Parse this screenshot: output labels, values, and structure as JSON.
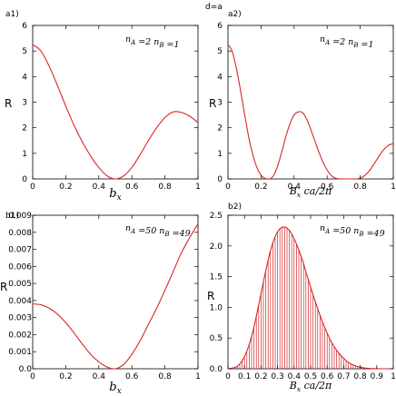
{
  "figure_title": "d=a",
  "colors": {
    "curve": "#d62728",
    "axis": "#000000"
  },
  "chart_data": [
    {
      "id": "a1",
      "panel_label": "a1)",
      "type": "line",
      "annotation": "n_A =2 n_B =1",
      "xlabel": "b_x",
      "ylabel": "R",
      "xlim": [
        0,
        1
      ],
      "ylim": [
        0,
        6
      ],
      "xticks": [
        0,
        0.2,
        0.4,
        0.6,
        0.8,
        1
      ],
      "xtick_labels": [
        "0",
        "0.2",
        "0.4",
        "0.6",
        "0.8",
        "1"
      ],
      "yticks": [
        0,
        1,
        2,
        3,
        4,
        5,
        6
      ],
      "ytick_labels": [
        "0",
        "1",
        "2",
        "3",
        "4",
        "5",
        "6"
      ],
      "grid": false,
      "series": [
        {
          "x": [
            0,
            0.05,
            0.1,
            0.15,
            0.2,
            0.25,
            0.3,
            0.35,
            0.4,
            0.45,
            0.5,
            0.55,
            0.6,
            0.65,
            0.7,
            0.75,
            0.8,
            0.85,
            0.9,
            0.95,
            1.0
          ],
          "y": [
            5.25,
            5.0,
            4.4,
            3.65,
            2.85,
            2.1,
            1.45,
            0.9,
            0.45,
            0.12,
            0.0,
            0.12,
            0.45,
            0.95,
            1.5,
            2.0,
            2.4,
            2.62,
            2.6,
            2.45,
            2.2
          ]
        }
      ]
    },
    {
      "id": "a2",
      "panel_label": "a2)",
      "type": "line",
      "annotation": "n_A =2 n_B =1",
      "xlabel": "B_x ca/2π",
      "ylabel": "R",
      "xlim": [
        0,
        1
      ],
      "ylim": [
        0,
        6
      ],
      "xticks": [
        0,
        0.2,
        0.4,
        0.6,
        0.8,
        1
      ],
      "xtick_labels": [
        "0",
        "0.2",
        "0.4",
        "0.6",
        "0.8",
        "1"
      ],
      "yticks": [
        0,
        1,
        2,
        3,
        4,
        5,
        6
      ],
      "ytick_labels": [
        "0",
        "1",
        "2",
        "3",
        "4",
        "5",
        "6"
      ],
      "grid": false,
      "series": [
        {
          "x": [
            0,
            0.025,
            0.05,
            0.075,
            0.1,
            0.125,
            0.15,
            0.175,
            0.2,
            0.225,
            0.25,
            0.275,
            0.3,
            0.325,
            0.35,
            0.375,
            0.4,
            0.425,
            0.45,
            0.475,
            0.5,
            0.525,
            0.55,
            0.575,
            0.6,
            0.625,
            0.65,
            0.675,
            0.7,
            0.725,
            0.75,
            0.775,
            0.8,
            0.825,
            0.85,
            0.875,
            0.9,
            0.925,
            0.95,
            0.975,
            1.0
          ],
          "y": [
            5.25,
            5.0,
            4.35,
            3.5,
            2.55,
            1.65,
            0.95,
            0.45,
            0.15,
            0.02,
            0.0,
            0.12,
            0.5,
            1.05,
            1.65,
            2.15,
            2.5,
            2.62,
            2.6,
            2.35,
            1.95,
            1.5,
            1.05,
            0.65,
            0.35,
            0.13,
            0.03,
            0.0,
            0.0,
            0.0,
            0.0,
            0.0,
            0.03,
            0.12,
            0.28,
            0.5,
            0.75,
            1.0,
            1.2,
            1.33,
            1.38
          ]
        }
      ]
    },
    {
      "id": "b1",
      "panel_label": "b1)",
      "type": "line",
      "annotation": "n_A =50 n_B =49",
      "xlabel": "b_x",
      "ylabel": "R",
      "xlim": [
        0,
        1
      ],
      "ylim": [
        0,
        0.009
      ],
      "xticks": [
        0,
        0.2,
        0.4,
        0.6,
        0.8,
        1
      ],
      "xtick_labels": [
        "0",
        "0.2",
        "0.4",
        "0.6",
        "0.8",
        "1"
      ],
      "yticks": [
        0,
        0.001,
        0.002,
        0.003,
        0.004,
        0.005,
        0.006,
        0.007,
        0.008,
        0.009
      ],
      "ytick_labels": [
        "0.0",
        "0.001",
        "0.002",
        "0.003",
        "0.004",
        "0.005",
        "0.006",
        "0.007",
        "0.008",
        "0.009"
      ],
      "grid": false,
      "series": [
        {
          "x": [
            0,
            0.05,
            0.1,
            0.15,
            0.2,
            0.25,
            0.3,
            0.35,
            0.4,
            0.45,
            0.5,
            0.55,
            0.6,
            0.65,
            0.7,
            0.75,
            0.8,
            0.85,
            0.9,
            0.95,
            1.0
          ],
          "y": [
            0.0038,
            0.00375,
            0.00355,
            0.0032,
            0.0027,
            0.0021,
            0.00145,
            0.00085,
            0.0004,
            0.0001,
            0.0,
            0.00025,
            0.00085,
            0.00165,
            0.0026,
            0.00355,
            0.0046,
            0.0057,
            0.0068,
            0.0077,
            0.0085
          ]
        }
      ]
    },
    {
      "id": "b2",
      "panel_label": "b2)",
      "type": "area",
      "annotation": "n_A =50 n_B =49",
      "xlabel": "B_x ca/2π",
      "ylabel": "R",
      "xlim": [
        0,
        1
      ],
      "ylim": [
        0,
        2.5
      ],
      "xticks": [
        0,
        0.1,
        0.2,
        0.3,
        0.4,
        0.5,
        0.6,
        0.7,
        0.8,
        0.9,
        1
      ],
      "xtick_labels": [
        "0",
        "0.1",
        "0.2",
        "0.3",
        "0.4",
        "0.5",
        "0.6",
        "0.7",
        "0.8",
        "0.9",
        "1"
      ],
      "yticks": [
        0,
        0.5,
        1.0,
        1.5,
        2.0,
        2.5
      ],
      "ytick_labels": [
        "0.0",
        "0.5",
        "1.0",
        "1.5",
        "2.0",
        "2.5"
      ],
      "grid": false,
      "filled_with_vertical_lines": true,
      "series": [
        {
          "x": [
            0,
            0.025,
            0.05,
            0.075,
            0.1,
            0.125,
            0.15,
            0.175,
            0.2,
            0.225,
            0.25,
            0.275,
            0.3,
            0.325,
            0.35,
            0.375,
            0.4,
            0.425,
            0.45,
            0.475,
            0.5,
            0.525,
            0.55,
            0.575,
            0.6,
            0.625,
            0.65,
            0.675,
            0.7,
            0.725,
            0.75,
            0.775,
            0.8,
            0.825,
            0.85,
            0.875,
            0.9,
            0.925,
            0.95,
            0.975,
            1.0
          ],
          "y": [
            0.0,
            0.01,
            0.03,
            0.09,
            0.2,
            0.37,
            0.6,
            0.9,
            1.22,
            1.55,
            1.85,
            2.08,
            2.23,
            2.3,
            2.3,
            2.24,
            2.12,
            1.96,
            1.77,
            1.55,
            1.33,
            1.12,
            0.92,
            0.74,
            0.58,
            0.44,
            0.33,
            0.24,
            0.17,
            0.11,
            0.07,
            0.045,
            0.025,
            0.013,
            0.006,
            0.003,
            0.001,
            0.0,
            0.0,
            0.0,
            0.0
          ]
        }
      ]
    }
  ]
}
